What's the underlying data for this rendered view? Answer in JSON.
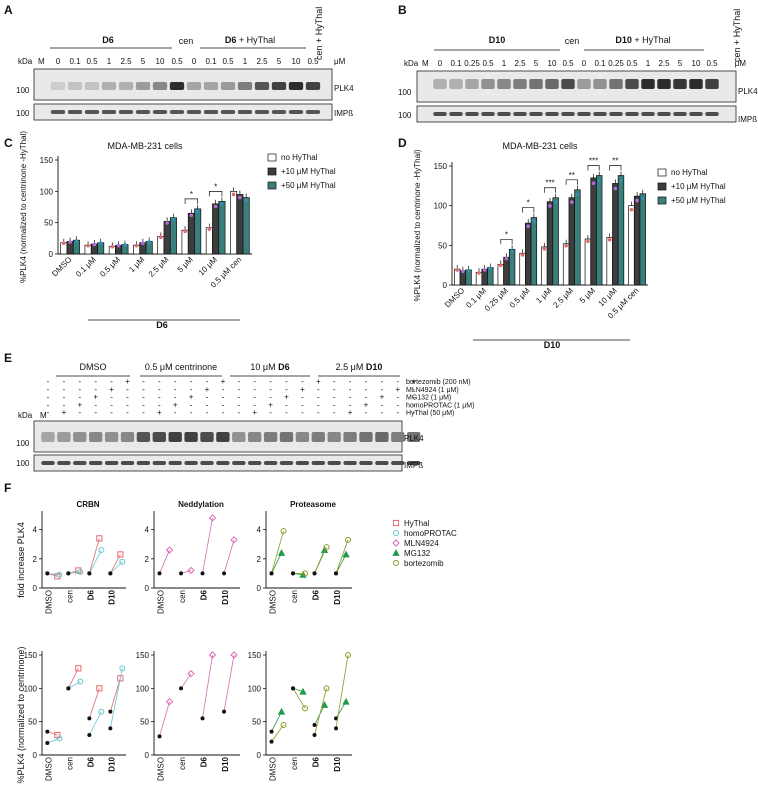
{
  "panels": {
    "A": {
      "letter": "A",
      "group1": "D6",
      "group2_bold": "D6",
      "group2_rest": " + HyThal",
      "cen": "cen",
      "cen_hythal": "cen + HyThal",
      "kda": "kDa",
      "marker": "M",
      "unit": "μM",
      "lanes": [
        "0",
        "0.1",
        "0.5",
        "1",
        "2.5",
        "5",
        "10",
        "0.5",
        "0",
        "0.1",
        "0.5",
        "1",
        "2.5",
        "5",
        "10",
        "0.5"
      ],
      "mw": [
        "100",
        "100"
      ],
      "band_labels": [
        "PLK4",
        "IMPß"
      ]
    },
    "B": {
      "letter": "B",
      "group1": "D10",
      "group2_bold": "D10",
      "group2_rest": " + HyThal",
      "cen": "cen",
      "cen_hythal": "cen + HyThal",
      "kda": "kDa",
      "marker": "M",
      "unit": "μM",
      "lanes": [
        "0",
        "0.1",
        "0.25",
        "0.5",
        "1",
        "2.5",
        "5",
        "10",
        "0.5",
        "0",
        "0.1",
        "0.25",
        "0.5",
        "1",
        "2.5",
        "5",
        "10",
        "0.5"
      ],
      "mw": [
        "100",
        "100"
      ],
      "band_labels": [
        "PLK4",
        "IMPß"
      ]
    },
    "C": {
      "letter": "C",
      "title": "MDA-MB-231 cells",
      "group": "D6"
    },
    "D": {
      "letter": "D",
      "title": "MDA-MB-231 cells",
      "group": "D10"
    },
    "E": {
      "letter": "E",
      "groups": [
        "DMSO",
        "0.5 μM centrinone",
        "10 μM ",
        "2.5 μM "
      ],
      "groups_bold": [
        "",
        "",
        "D6",
        "D10"
      ],
      "treatments": [
        "bortezomib (200 nM)",
        "MLN4924 (1 μM)",
        "MG132 (1 μM)",
        "homoPROTAC (1 μM)",
        "HyThal (50 μM)"
      ],
      "kda": "kDa",
      "marker": "M",
      "mw": [
        "100",
        "100"
      ],
      "band_labels": [
        "PLK4",
        "IMPß"
      ]
    },
    "F": {
      "letter": "F",
      "titles": [
        "CRBN",
        "Neddylation",
        "Proteasome"
      ],
      "ylabel_top": "fold increase PLK4",
      "ylabel_bottom": "%PLK4 (normalized to centrinone)",
      "x_ticks": [
        "DMSO",
        "cen",
        "D6",
        "D10"
      ],
      "legend": [
        "HyThal",
        "homoPROTAC",
        "MLN4924",
        "MG132",
        "bortezomib"
      ]
    }
  },
  "colors": {
    "hythal": "#e8696b",
    "homoprotac": "#5fc6d3",
    "mln4924": "#d96bb5",
    "mg132": "#1f9a4b",
    "bortezomib": "#8b9a24",
    "bar_white": "#ffffff",
    "bar_dark": "#3d3d3d",
    "bar_teal": "#3a7f7c"
  },
  "chart_data": [
    {
      "type": "bar",
      "title": "MDA-MB-231 cells",
      "ylabel": "%PLK4 (normalized to centrinone -HyThal)",
      "ylim": [
        0,
        150
      ],
      "yticks": [
        "0",
        "50",
        "100",
        "150"
      ],
      "categories": [
        "DMSO",
        "0.1 μM",
        "0.5 μM",
        "1 μM",
        "2.5 μM",
        "5 μM",
        "10 μM",
        "0.5 μM cen"
      ],
      "series": [
        {
          "name": "no HyThal",
          "values": [
            18,
            14,
            12,
            14,
            28,
            38,
            42,
            100
          ]
        },
        {
          "name": "+10 μM HyThal",
          "values": [
            20,
            16,
            14,
            18,
            52,
            65,
            80,
            95
          ]
        },
        {
          "name": "+50 μM HyThal",
          "values": [
            22,
            18,
            15,
            20,
            58,
            72,
            84,
            90
          ]
        }
      ],
      "significance": [
        {
          "between": "5 μM",
          "label": "*"
        },
        {
          "between": "10 μM",
          "label": "*"
        }
      ],
      "legend_position": "top-right"
    },
    {
      "type": "bar",
      "title": "MDA-MB-231 cells",
      "ylabel": "%PLK4 (normalized to centrinone -HyThal)",
      "ylim": [
        0,
        150
      ],
      "yticks": [
        "0",
        "50",
        "100",
        "150"
      ],
      "categories": [
        "DMSO",
        "0.1 μM",
        "0.25 μM",
        "0.5 μM",
        "1 μM",
        "2.5 μM",
        "5 μM",
        "10 μM",
        "0.5 μM cen"
      ],
      "series": [
        {
          "name": "no HyThal",
          "values": [
            20,
            16,
            26,
            40,
            48,
            52,
            58,
            60,
            100
          ]
        },
        {
          "name": "+10 μM HyThal",
          "values": [
            18,
            20,
            35,
            78,
            105,
            110,
            135,
            128,
            112
          ]
        },
        {
          "name": "+50 μM HyThal",
          "values": [
            19,
            22,
            45,
            85,
            110,
            120,
            138,
            138,
            115
          ]
        }
      ],
      "significance": [
        {
          "between": "0.25 μM",
          "label": "*"
        },
        {
          "between": "0.5 μM",
          "label": "*"
        },
        {
          "between": "1 μM",
          "label": "***"
        },
        {
          "between": "2.5 μM",
          "label": "**"
        },
        {
          "between": "5 μM",
          "label": "***"
        },
        {
          "between": "10 μM",
          "label": "**"
        }
      ],
      "legend_position": "top-right"
    },
    {
      "type": "line",
      "title": "CRBN",
      "ylabel": "fold increase PLK4",
      "ylim": [
        0,
        5
      ],
      "yticks": [
        "0",
        "2",
        "4"
      ],
      "categories": [
        "DMSO",
        "cen",
        "D6",
        "D10"
      ],
      "series": [
        {
          "name": "HyThal",
          "pairs": [
            [
              1,
              0.8
            ],
            [
              1,
              1.2
            ],
            [
              1,
              3.4
            ],
            [
              1,
              2.3
            ]
          ]
        },
        {
          "name": "homoPROTAC",
          "pairs": [
            [
              1,
              0.9
            ],
            [
              1,
              1.1
            ],
            [
              1,
              2.6
            ],
            [
              1,
              1.8
            ]
          ]
        }
      ]
    },
    {
      "type": "line",
      "title": "Neddylation",
      "ylabel": "fold increase PLK4",
      "ylim": [
        0,
        5
      ],
      "yticks": [
        "0",
        "2",
        "4"
      ],
      "categories": [
        "DMSO",
        "cen",
        "D6",
        "D10"
      ],
      "series": [
        {
          "name": "MLN4924",
          "pairs": [
            [
              1,
              2.6
            ],
            [
              1,
              1.2
            ],
            [
              1,
              4.8
            ],
            [
              1,
              3.3
            ]
          ]
        }
      ]
    },
    {
      "type": "line",
      "title": "Proteasome",
      "ylabel": "fold increase PLK4",
      "ylim": [
        0,
        5
      ],
      "yticks": [
        "0",
        "2",
        "4"
      ],
      "categories": [
        "DMSO",
        "cen",
        "D6",
        "D10"
      ],
      "series": [
        {
          "name": "MG132",
          "pairs": [
            [
              1,
              2.4
            ],
            [
              1,
              0.9
            ],
            [
              1,
              2.6
            ],
            [
              1,
              2.3
            ]
          ]
        },
        {
          "name": "bortezomib",
          "pairs": [
            [
              1,
              3.9
            ],
            [
              1,
              1.0
            ],
            [
              1,
              2.8
            ],
            [
              1,
              3.3
            ]
          ]
        }
      ]
    },
    {
      "type": "line",
      "title": "CRBN",
      "ylabel": "%PLK4 (normalized to centrinone)",
      "ylim": [
        0,
        150
      ],
      "yticks": [
        "0",
        "50",
        "100",
        "150"
      ],
      "categories": [
        "DMSO",
        "cen",
        "D6",
        "D10"
      ],
      "series": [
        {
          "name": "HyThal",
          "pairs": [
            [
              35,
              30
            ],
            [
              100,
              130
            ],
            [
              55,
              100
            ],
            [
              65,
              115
            ]
          ]
        },
        {
          "name": "homoPROTAC",
          "pairs": [
            [
              18,
              25
            ],
            [
              100,
              110
            ],
            [
              30,
              65
            ],
            [
              40,
              130
            ]
          ]
        }
      ]
    },
    {
      "type": "line",
      "title": "Neddylation",
      "ylabel": "%PLK4 (normalized to centrinone)",
      "ylim": [
        0,
        150
      ],
      "yticks": [
        "0",
        "50",
        "100",
        "150"
      ],
      "categories": [
        "DMSO",
        "cen",
        "D6",
        "D10"
      ],
      "series": [
        {
          "name": "MLN4924",
          "pairs": [
            [
              28,
              80
            ],
            [
              100,
              122
            ],
            [
              55,
              150
            ],
            [
              65,
              150
            ]
          ]
        }
      ]
    },
    {
      "type": "line",
      "title": "Proteasome",
      "ylabel": "%PLK4 (normalized to centrinone)",
      "ylim": [
        0,
        150
      ],
      "yticks": [
        "0",
        "50",
        "100",
        "150"
      ],
      "categories": [
        "DMSO",
        "cen",
        "D6",
        "D10"
      ],
      "series": [
        {
          "name": "MG132",
          "pairs": [
            [
              35,
              65
            ],
            [
              100,
              95
            ],
            [
              45,
              75
            ],
            [
              55,
              80
            ]
          ]
        },
        {
          "name": "bortezomib",
          "pairs": [
            [
              20,
              45
            ],
            [
              100,
              70
            ],
            [
              30,
              100
            ],
            [
              40,
              150
            ]
          ]
        }
      ]
    }
  ]
}
